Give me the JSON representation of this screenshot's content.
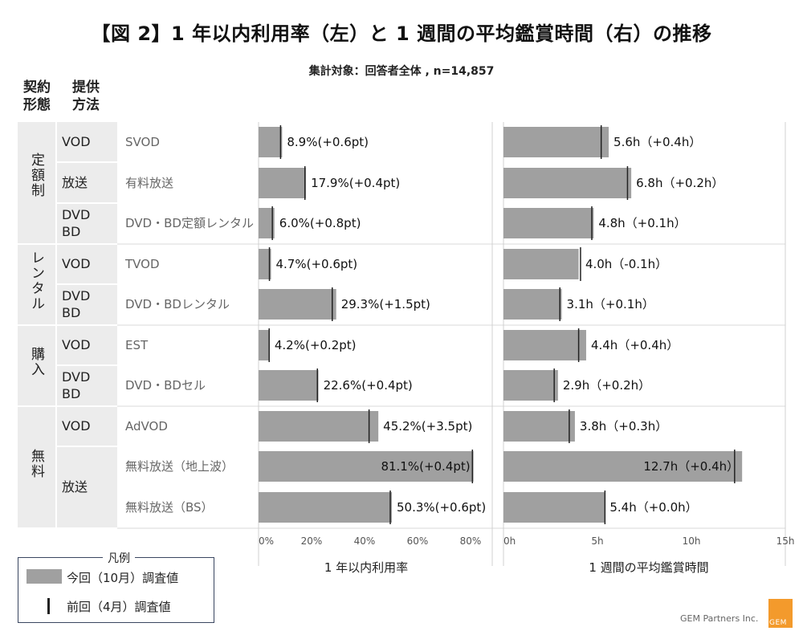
{
  "title": "【図 2】1 年以内利用率（左）と 1 週間の平均鑑賞時間（右）の推移",
  "subtitle": "集計対象：回答者全体 , n=14,857",
  "headers": {
    "type_line1": "契約",
    "type_line2": "形態",
    "method_line1": "提供",
    "method_line2": "方法"
  },
  "groups": [
    {
      "label": "定額制",
      "methods": [
        "VOD",
        "放送",
        "DVD\nBD"
      ]
    },
    {
      "label": "レンタル",
      "methods": [
        "VOD",
        "DVD\nBD"
      ]
    },
    {
      "label": "購入",
      "methods": [
        "VOD",
        "DVD\nBD"
      ]
    },
    {
      "label": "無料",
      "methods": [
        "VOD",
        "放送"
      ]
    }
  ],
  "method_labels": {
    "vod_1": "VOD",
    "hoso_1": "放送",
    "dvd_1a": "DVD",
    "dvd_1b": "BD",
    "vod_2": "VOD",
    "dvd_2a": "DVD",
    "dvd_2b": "BD",
    "vod_3": "VOD",
    "dvd_3a": "DVD",
    "dvd_3b": "BD",
    "vod_4": "VOD",
    "hoso_4": "放送"
  },
  "chart_data": [
    {
      "type": "bar",
      "orientation": "horizontal",
      "xlabel": "1 年以内利用率",
      "xlim": [
        0,
        85
      ],
      "xticks": [
        "0%",
        "20%",
        "40%",
        "60%",
        "80%"
      ],
      "categories": [
        "SVOD",
        "有料放送",
        "DVD・BD定額レンタル",
        "TVOD",
        "DVD・BDレンタル",
        "EST",
        "DVD・BDセル",
        "AdVOD",
        "無料放送（地上波）",
        "無料放送（BS）"
      ],
      "series": [
        {
          "name": "今回（10月）調査値",
          "values": [
            8.9,
            17.9,
            6.0,
            4.7,
            29.3,
            4.2,
            22.6,
            45.2,
            81.1,
            50.3
          ]
        },
        {
          "name": "前回（4月）調査値",
          "values": [
            8.3,
            17.5,
            5.2,
            4.1,
            27.8,
            4.0,
            22.2,
            41.7,
            80.7,
            49.7
          ]
        }
      ],
      "data_labels": [
        "8.9%(+0.6pt)",
        "17.9%(+0.4pt)",
        "6.0%(+0.8pt)",
        "4.7%(+0.6pt)",
        "29.3%(+1.5pt)",
        "4.2%(+0.2pt)",
        "22.6%(+0.4pt)",
        "45.2%(+3.5pt)",
        "81.1%(+0.4pt)",
        "50.3%(+0.6pt)"
      ]
    },
    {
      "type": "bar",
      "orientation": "horizontal",
      "xlabel": "1 週間の平均鑑賞時間",
      "xlim": [
        0,
        15
      ],
      "xticks": [
        "0h",
        "5h",
        "10h",
        "15h"
      ],
      "categories": [
        "SVOD",
        "有料放送",
        "DVD・BD定額レンタル",
        "TVOD",
        "DVD・BDレンタル",
        "EST",
        "DVD・BDセル",
        "AdVOD",
        "無料放送（地上波）",
        "無料放送（BS）"
      ],
      "series": [
        {
          "name": "今回（10月）調査値",
          "values": [
            5.6,
            6.8,
            4.8,
            4.0,
            3.1,
            4.4,
            2.9,
            3.8,
            12.7,
            5.4
          ]
        },
        {
          "name": "前回（4月）調査値",
          "values": [
            5.2,
            6.6,
            4.7,
            4.1,
            3.0,
            4.0,
            2.7,
            3.5,
            12.3,
            5.4
          ]
        }
      ],
      "data_labels": [
        "5.6h（+0.4h）",
        "6.8h（+0.2h）",
        "4.8h（+0.1h）",
        "4.0h（-0.1h）",
        "3.1h（+0.1h）",
        "4.4h（+0.4h）",
        "2.9h（+0.2h）",
        "3.8h（+0.3h）",
        "12.7h（+0.4h）",
        "5.4h（+0.0h）"
      ]
    }
  ],
  "legend": {
    "title": "凡例",
    "current": "今回（10月）調査値",
    "previous": "前回（4月）調査値"
  },
  "source": "GEM Partners Inc.",
  "logo_text": "GEM",
  "colors": {
    "bar": "#a0a0a0",
    "marker": "#222222",
    "group_bg": "#ececec"
  }
}
